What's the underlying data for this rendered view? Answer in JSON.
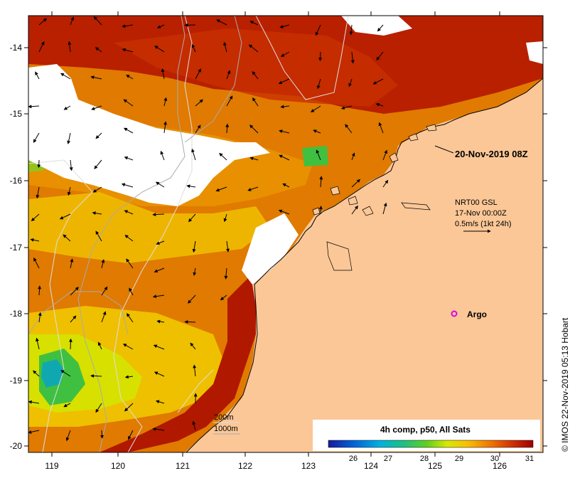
{
  "map": {
    "timestamp_label": "20-Nov-2019 08Z",
    "current_source": {
      "line1": "NRT00 GSL",
      "line2": "17-Nov 00:00Z",
      "line3": "0.5m/s (1kt 24h)"
    },
    "argo_label": "Argo",
    "contour_legend": {
      "shallow": "200m",
      "deep": "1000m"
    },
    "credit": "© IMOS 22-Nov-2019 05:13 Hobart",
    "lon_ticks": [
      "119",
      "120",
      "121",
      "122",
      "123",
      "124",
      "125",
      "126"
    ],
    "lat_ticks": [
      "-14",
      "-15",
      "-16",
      "-17",
      "-18",
      "-19",
      "-20"
    ],
    "colorbar": {
      "title": "4h comp, p50, All Sats",
      "ticks": [
        "26",
        "27",
        "28",
        "29",
        "30",
        "31"
      ],
      "colors": [
        "#1a1a9a",
        "#0060d8",
        "#00b0e0",
        "#20c080",
        "#60d020",
        "#d8e800",
        "#f8c000",
        "#f07000",
        "#d03000",
        "#a00000"
      ]
    },
    "colors": {
      "land": "#fbc797",
      "no_data": "#ffffff",
      "sst_warm": "#a81800",
      "sst_mid": "#e07000",
      "sst_cool": "#f0c000",
      "sst_cold": "#30c060",
      "argo": "#e000e0"
    }
  }
}
